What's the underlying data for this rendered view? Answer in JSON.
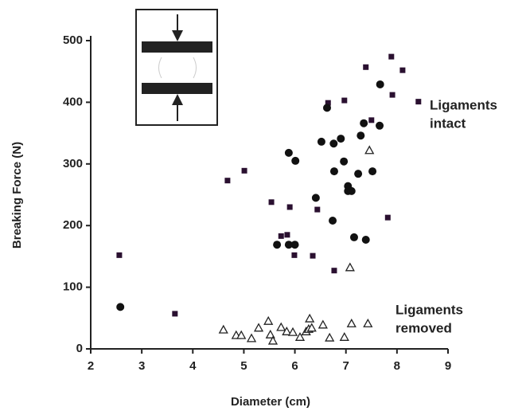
{
  "chart_data": {
    "type": "scatter",
    "xlabel": "Diameter (cm)",
    "ylabel": "Breaking Force (N)",
    "xlim": [
      2,
      9
    ],
    "xticks": [
      2,
      3,
      4,
      5,
      6,
      7,
      8,
      9
    ],
    "ylim": [
      0,
      500
    ],
    "yticks": [
      0,
      100,
      200,
      300,
      400,
      500
    ],
    "annotations": [
      {
        "lines": [
          "Ligaments",
          "intact"
        ]
      },
      {
        "lines": [
          "Ligaments",
          "removed"
        ]
      }
    ],
    "series": [
      {
        "marker": "square",
        "color": "#2a1030",
        "x": [
          2.56,
          3.65,
          4.68,
          5.01,
          5.54,
          5.73,
          5.85,
          5.9,
          5.99,
          6.35,
          6.44,
          6.65,
          6.77,
          6.97,
          7.39,
          7.5,
          7.82,
          7.89,
          7.91,
          8.11,
          8.42
        ],
        "values": [
          152,
          57,
          273,
          289,
          238,
          183,
          185,
          230,
          152,
          151,
          226,
          399,
          127,
          403,
          457,
          371,
          213,
          474,
          412,
          452,
          401
        ]
      },
      {
        "marker": "circle",
        "color": "#111111",
        "x": [
          2.58,
          5.65,
          5.88,
          6.01,
          5.88,
          6.0,
          6.41,
          6.52,
          6.63,
          6.74,
          6.76,
          6.77,
          6.9,
          6.96,
          7.04,
          7.04,
          7.11,
          7.16,
          7.24,
          7.29,
          7.35,
          7.39,
          7.52,
          7.66,
          7.67
        ],
        "values": [
          68,
          169,
          318,
          305,
          169,
          169,
          245,
          336,
          391,
          208,
          333,
          288,
          341,
          304,
          264,
          256,
          256,
          181,
          284,
          346,
          366,
          177,
          288,
          362,
          429
        ]
      },
      {
        "marker": "triangle",
        "color": "#222222",
        "x": [
          4.6,
          4.85,
          4.95,
          5.15,
          5.29,
          5.48,
          5.52,
          5.57,
          5.73,
          5.84,
          5.96,
          6.1,
          6.22,
          6.27,
          6.29,
          6.33,
          6.55,
          6.68,
          6.97,
          7.08,
          7.11,
          7.43,
          7.46
        ],
        "values": [
          31,
          22,
          22,
          17,
          34,
          45,
          23,
          13,
          35,
          28,
          27,
          19,
          28,
          32,
          49,
          34,
          39,
          18,
          19,
          132,
          41,
          41,
          322
        ]
      }
    ]
  }
}
